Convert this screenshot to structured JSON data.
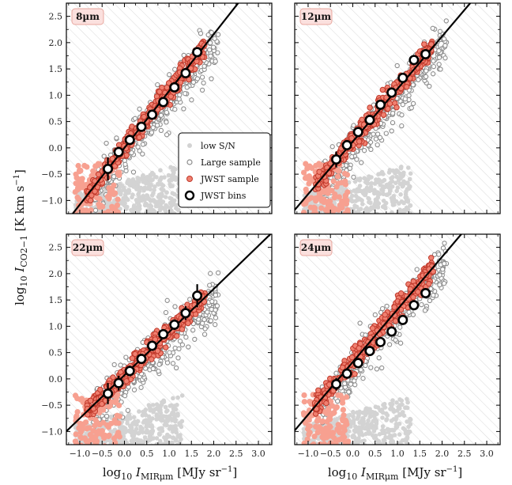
{
  "chart_data": {
    "type": "scatter",
    "ylabel": "log10 I_CO2-1 [K km s^-1]",
    "xlabel": "log10 I_MIRµm [MJy sr^-1]",
    "xlim": [
      -1.3,
      3.3
    ],
    "ylim": [
      -1.25,
      2.75
    ],
    "xticks": [
      "-1.0",
      "-0.5",
      "0.0",
      "0.5",
      "1.0",
      "1.5",
      "2.0",
      "2.5",
      "3.0"
    ],
    "yticks": [
      "-1.0",
      "-0.5",
      "0.0",
      "0.5",
      "1.0",
      "1.5",
      "2.0",
      "2.5"
    ],
    "legend": {
      "position": "lower-right of 8µm panel",
      "entries": [
        "low S/N",
        "Large sample",
        "JWST sample",
        "JWST bins"
      ]
    },
    "colors": {
      "low_sn": "#d3d3d3",
      "large": "#8c8c8c",
      "jwst_fill": "#f08070",
      "jwst_edge": "#c0392b",
      "jwst_faint": "#f7a090"
    },
    "panels": [
      {
        "label": "8µm",
        "fit": {
          "slope": 1.08,
          "intercept": 0.0
        },
        "bins": {
          "x": [
            -0.37,
            -0.13,
            0.12,
            0.38,
            0.62,
            0.87,
            1.12,
            1.37,
            1.63
          ],
          "y": [
            -0.4,
            -0.08,
            0.15,
            0.4,
            0.63,
            0.87,
            1.15,
            1.42,
            1.82
          ],
          "yerr": [
            0.22,
            0.1,
            0.08,
            0.08,
            0.07,
            0.07,
            0.06,
            0.06,
            0.05
          ]
        }
      },
      {
        "label": "12µm",
        "fit": {
          "slope": 1.0,
          "intercept": 0.12
        },
        "bins": {
          "x": [
            -0.37,
            -0.13,
            0.12,
            0.38,
            0.62,
            0.87,
            1.12,
            1.37,
            1.63
          ],
          "y": [
            -0.22,
            0.05,
            0.3,
            0.53,
            0.82,
            1.05,
            1.33,
            1.67,
            1.78
          ],
          "yerr": [
            0.15,
            0.08,
            0.07,
            0.07,
            0.07,
            0.06,
            0.06,
            0.06,
            0.05
          ]
        }
      },
      {
        "label": "22µm",
        "fit": {
          "slope": 0.82,
          "intercept": 0.07
        },
        "bins": {
          "x": [
            -0.37,
            -0.13,
            0.12,
            0.38,
            0.62,
            0.87,
            1.12,
            1.37,
            1.63
          ],
          "y": [
            -0.28,
            -0.08,
            0.15,
            0.38,
            0.63,
            0.85,
            1.03,
            1.25,
            1.58
          ],
          "yerr": [
            0.2,
            0.14,
            0.1,
            0.09,
            0.08,
            0.08,
            0.1,
            0.13,
            0.22
          ]
        }
      },
      {
        "label": "24µm",
        "fit": {
          "slope": 1.0,
          "intercept": 0.32
        },
        "bins": {
          "x": [
            -0.37,
            -0.13,
            0.12,
            0.38,
            0.62,
            0.87,
            1.12,
            1.37,
            1.63
          ],
          "y": [
            -0.1,
            0.1,
            0.3,
            0.53,
            0.7,
            0.9,
            1.12,
            1.4,
            1.63
          ],
          "yerr": [
            0.12,
            0.08,
            0.07,
            0.07,
            0.07,
            0.07,
            0.07,
            0.08,
            0.08
          ]
        }
      }
    ]
  }
}
